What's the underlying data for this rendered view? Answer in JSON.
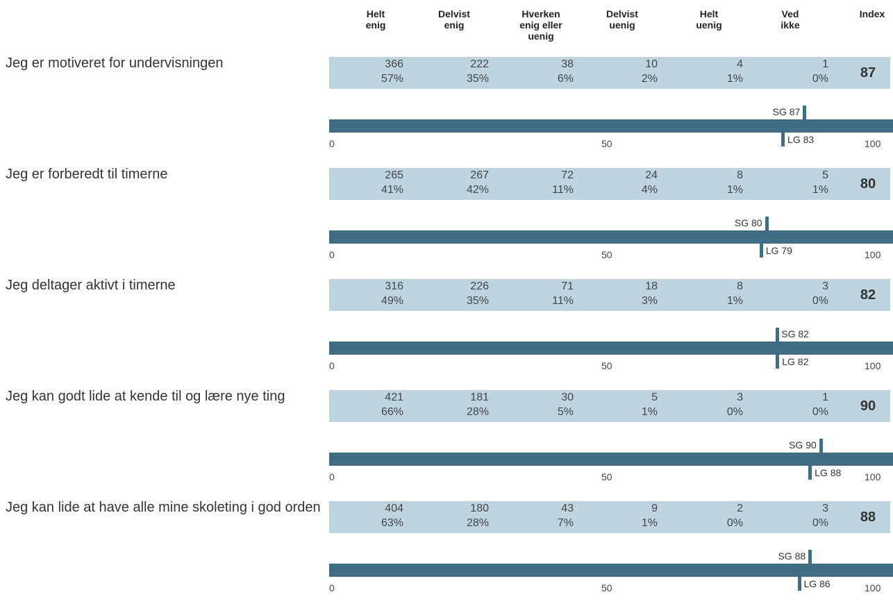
{
  "headers": [
    "Helt\nenig",
    "Delvist\nenig",
    "Hverken\nenig eller\nuenig",
    "Delvist\nuenig",
    "Helt\nuenig",
    "Ved\nikke",
    "Index"
  ],
  "chart_data": {
    "type": "table",
    "columns": [
      "Helt enig",
      "Delvist enig",
      "Hverken enig eller uenig",
      "Delvist uenig",
      "Helt uenig",
      "Ved ikke",
      "Index"
    ],
    "axis_ticks": [
      "0",
      "50",
      "100"
    ],
    "rows": [
      {
        "question": "Jeg er motiveret for undervisningen",
        "counts": [
          "366",
          "222",
          "38",
          "10",
          "4",
          "1"
        ],
        "percents": [
          "57%",
          "35%",
          "6%",
          "2%",
          "1%",
          "0%"
        ],
        "index": "87",
        "sg": 87,
        "sg_label": "SG 87",
        "lg": 83,
        "lg_label": "LG 83"
      },
      {
        "question": "Jeg er forberedt til timerne",
        "counts": [
          "265",
          "267",
          "72",
          "24",
          "8",
          "5"
        ],
        "percents": [
          "41%",
          "42%",
          "11%",
          "4%",
          "1%",
          "1%"
        ],
        "index": "80",
        "sg": 80,
        "sg_label": "SG 80",
        "lg": 79,
        "lg_label": "LG 79"
      },
      {
        "question": "Jeg deltager aktivt i timerne",
        "counts": [
          "316",
          "226",
          "71",
          "18",
          "8",
          "3"
        ],
        "percents": [
          "49%",
          "35%",
          "11%",
          "3%",
          "1%",
          "0%"
        ],
        "index": "82",
        "sg": 82,
        "sg_label": "SG 82",
        "lg": 82,
        "lg_label": "LG 82"
      },
      {
        "question": "Jeg kan godt lide at kende til og lære nye ting",
        "counts": [
          "421",
          "181",
          "30",
          "5",
          "3",
          "1"
        ],
        "percents": [
          "66%",
          "28%",
          "5%",
          "1%",
          "0%",
          "0%"
        ],
        "index": "90",
        "sg": 90,
        "sg_label": "SG 90",
        "lg": 88,
        "lg_label": "LG 88"
      },
      {
        "question": "Jeg kan lide at have alle mine skoleting i god orden",
        "counts": [
          "404",
          "180",
          "43",
          "9",
          "2",
          "3"
        ],
        "percents": [
          "63%",
          "28%",
          "7%",
          "1%",
          "0%",
          "0%"
        ],
        "index": "88",
        "sg": 88,
        "sg_label": "SG 88",
        "lg": 86,
        "lg_label": "LG 86"
      }
    ]
  }
}
